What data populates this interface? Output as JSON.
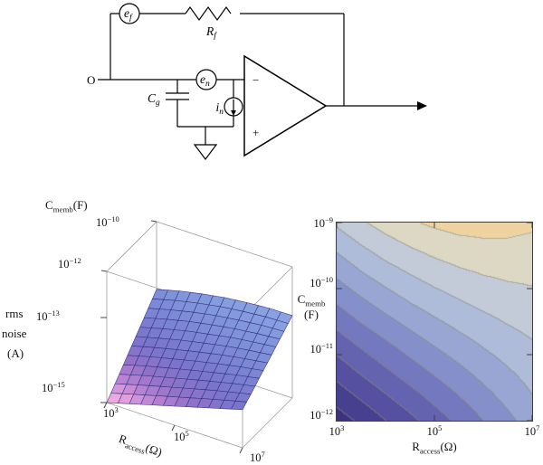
{
  "circuit": {
    "labels": {
      "input_terminal": "O",
      "ef": {
        "base": "e",
        "sub": "f"
      },
      "rf": {
        "base": "R",
        "sub": "f"
      },
      "en": {
        "base": "e",
        "sub": "n"
      },
      "cg": {
        "base": "C",
        "sub": "g"
      },
      "inoise": {
        "base": "i",
        "sub": "n"
      },
      "minus": "−",
      "plus": "+"
    }
  },
  "chart_data": [
    {
      "type": "surface3d",
      "title": "",
      "xlabel": {
        "base": "R",
        "sub": "access",
        "suffix": "(Ω)"
      },
      "x_ticks": [
        {
          "b": "10",
          "e": "3"
        },
        {
          "b": "10",
          "e": "5"
        },
        {
          "b": "10",
          "e": "7"
        }
      ],
      "x_log10_range": [
        3,
        7
      ],
      "ylabel": {
        "base": "C",
        "sub": "memb",
        "suffix": "(F)"
      },
      "y_ticks": [
        {
          "b": "10",
          "e": "−12"
        },
        {
          "b": "10",
          "e": "−10"
        }
      ],
      "y_log10_range": [
        -12,
        -10
      ],
      "zlabel_lines": [
        "rms",
        "noise",
        "(A)"
      ],
      "z_ticks": [
        {
          "b": "10",
          "e": "−15"
        },
        {
          "b": "10",
          "e": "−13"
        }
      ],
      "z_log10_range": [
        -15,
        -13
      ],
      "grid_log10_noise": [
        [
          -15.0,
          -14.85,
          -14.7,
          -14.55,
          -14.4,
          -14.25,
          -14.1
        ],
        [
          -14.75,
          -14.6,
          -14.46,
          -14.32,
          -14.18,
          -14.05,
          -13.93
        ],
        [
          -14.5,
          -14.35,
          -14.22,
          -14.09,
          -13.97,
          -13.85,
          -13.75
        ],
        [
          -14.25,
          -14.11,
          -13.98,
          -13.86,
          -13.75,
          -13.66,
          -13.58
        ],
        [
          -14.0,
          -13.86,
          -13.73,
          -13.63,
          -13.53,
          -13.46,
          -13.4
        ],
        [
          -13.75,
          -13.61,
          -13.49,
          -13.39,
          -13.32,
          -13.26,
          -13.23
        ],
        [
          -13.5,
          -13.36,
          -13.25,
          -13.16,
          -13.1,
          -13.06,
          -13.05
        ]
      ],
      "surface_palette": [
        [
          0,
          "#f6b9e3"
        ],
        [
          0.08,
          "#e3a0dd"
        ],
        [
          0.18,
          "#b983d2"
        ],
        [
          0.3,
          "#9172c8"
        ],
        [
          0.45,
          "#7a74cc"
        ],
        [
          0.65,
          "#7b87d5"
        ],
        [
          0.85,
          "#8399dd"
        ],
        [
          1,
          "#8ea6e2"
        ]
      ],
      "mesh_line_color": "#2f2f7e",
      "grid_on": true,
      "legend": "none"
    },
    {
      "type": "contour",
      "title": "",
      "xlabel": {
        "base": "R",
        "sub": "access",
        "suffix": "(Ω)"
      },
      "x_ticks": [
        {
          "b": "10",
          "e": "3"
        },
        {
          "b": "10",
          "e": "5"
        },
        {
          "b": "10",
          "e": "7"
        }
      ],
      "x_log10_range": [
        3,
        7
      ],
      "ylabel": {
        "base": "C",
        "sub": "memb",
        "suffix": "(F)"
      },
      "y_ticks": [
        {
          "b": "10",
          "e": "−9"
        },
        {
          "b": "10",
          "e": "−10"
        },
        {
          "b": "10",
          "e": "−11"
        },
        {
          "b": "10",
          "e": "−12"
        }
      ],
      "y_log10_range": [
        -12,
        -9
      ],
      "band_start": -15.15,
      "band_step": 0.3,
      "band_colors": [
        "#3b3180",
        "#47408f",
        "#55509f",
        "#6463b0",
        "#7378bf",
        "#8590ca",
        "#99a6d3",
        "#aebcd9",
        "#c3cbd8",
        "#dcd8c3",
        "#eed2a0"
      ],
      "contour_line_color": "#8a8a7a",
      "grid_log10_noise": [
        [
          -15.0,
          -14.78,
          -14.55,
          -14.33,
          -14.1,
          -13.88,
          -13.65,
          -13.43,
          -13.2
        ],
        [
          -14.71,
          -14.49,
          -14.27,
          -14.06,
          -13.85,
          -13.65,
          -13.45,
          -13.25,
          -13.06
        ],
        [
          -14.43,
          -14.2,
          -13.99,
          -13.79,
          -13.6,
          -13.42,
          -13.24,
          -13.08,
          -12.93
        ],
        [
          -14.14,
          -13.92,
          -13.72,
          -13.53,
          -13.35,
          -13.19,
          -13.04,
          -12.91,
          -12.79
        ],
        [
          -13.85,
          -13.63,
          -13.44,
          -13.26,
          -13.1,
          -12.96,
          -12.84,
          -12.73,
          -12.65
        ],
        [
          -13.56,
          -13.35,
          -13.16,
          -12.99,
          -12.85,
          -12.73,
          -12.63,
          -12.56,
          -12.51
        ],
        [
          -13.28,
          -13.06,
          -12.88,
          -12.73,
          -12.6,
          -12.5,
          -12.43,
          -12.39,
          -12.38
        ],
        [
          -12.99,
          -12.78,
          -12.6,
          -12.46,
          -12.35,
          -12.27,
          -12.23,
          -12.22,
          -12.24
        ],
        [
          -12.7,
          -12.49,
          -12.33,
          -12.19,
          -12.1,
          -12.04,
          -12.03,
          -12.05,
          -12.1
        ]
      ],
      "legend": "none"
    }
  ]
}
